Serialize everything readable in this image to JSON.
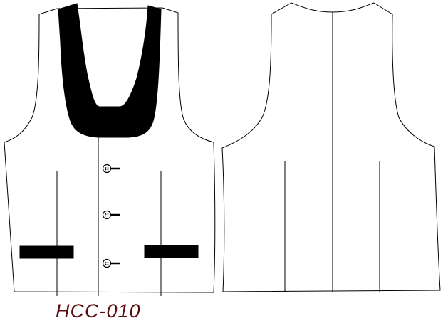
{
  "style_code": "HCC-010",
  "views": [
    {
      "id": "front",
      "features": [
        "shawl-collar",
        "three-buttons",
        "two-welt-pockets",
        "princess-darts"
      ]
    },
    {
      "id": "back",
      "features": [
        "center-back-seam",
        "two-back-darts"
      ]
    }
  ],
  "button_count": 3,
  "colors": {
    "outline": "#000000",
    "fill": "#ffffff",
    "trim": "#000000",
    "label": "#5a0e0e"
  }
}
